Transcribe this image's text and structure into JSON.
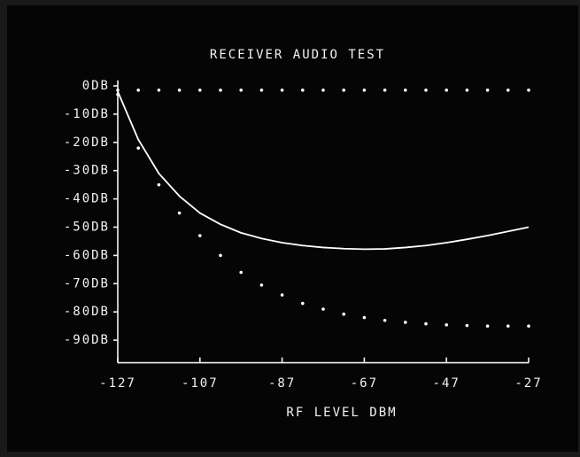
{
  "chart_data": {
    "type": "line",
    "title": "RECEIVER AUDIO TEST",
    "x_label": "RF LEVEL DBM",
    "x": [
      -127,
      -122,
      -117,
      -112,
      -107,
      -102,
      -97,
      -92,
      -87,
      -82,
      -77,
      -72,
      -67,
      -62,
      -57,
      -52,
      -47,
      -42,
      -37,
      -32,
      -27
    ],
    "series": [
      {
        "color": "#ffffff",
        "style": "dotted",
        "values": [
          -1.5,
          -1.5,
          -1.5,
          -1.5,
          -1.5,
          -1.5,
          -1.5,
          -1.5,
          -1.5,
          -1.5,
          -1.5,
          -1.5,
          -1.5,
          -1.5,
          -1.5,
          -1.5,
          -1.5,
          -1.5,
          -1.5,
          -1.5,
          -1.5
        ]
      },
      {
        "color": "#ffffff",
        "style": "solid",
        "values": [
          -2,
          -19,
          -31,
          -39,
          -45,
          -49,
          -52,
          -54,
          -55.5,
          -56.5,
          -57.2,
          -57.6,
          -57.8,
          -57.7,
          -57.2,
          -56.5,
          -55.5,
          -54.3,
          -53,
          -51.5,
          -50
        ]
      },
      {
        "color": "#ffffff",
        "style": "dotted",
        "values": [
          -3,
          -22,
          -35,
          -45,
          -53,
          -60,
          -66,
          -70.5,
          -74,
          -77,
          -79,
          -80.8,
          -82,
          -83,
          -83.7,
          -84.2,
          -84.6,
          -84.8,
          -85,
          -85,
          -85
        ]
      }
    ],
    "xlim": [
      -127,
      -27
    ],
    "xticks": [
      -127,
      -107,
      -87,
      -67,
      -47,
      -27
    ],
    "ylim": [
      -98,
      2
    ],
    "yticks": [
      {
        "value": 0,
        "label": "0DB"
      },
      {
        "value": -10,
        "label": "-10DB"
      },
      {
        "value": -20,
        "label": "-20DB"
      },
      {
        "value": -30,
        "label": "-30DB"
      },
      {
        "value": -40,
        "label": "-40DB"
      },
      {
        "value": -50,
        "label": "-50DB"
      },
      {
        "value": -60,
        "label": "-60DB"
      },
      {
        "value": -70,
        "label": "-70DB"
      },
      {
        "value": -80,
        "label": "-80DB"
      },
      {
        "value": -90,
        "label": "-90DB"
      }
    ],
    "grid": false
  }
}
